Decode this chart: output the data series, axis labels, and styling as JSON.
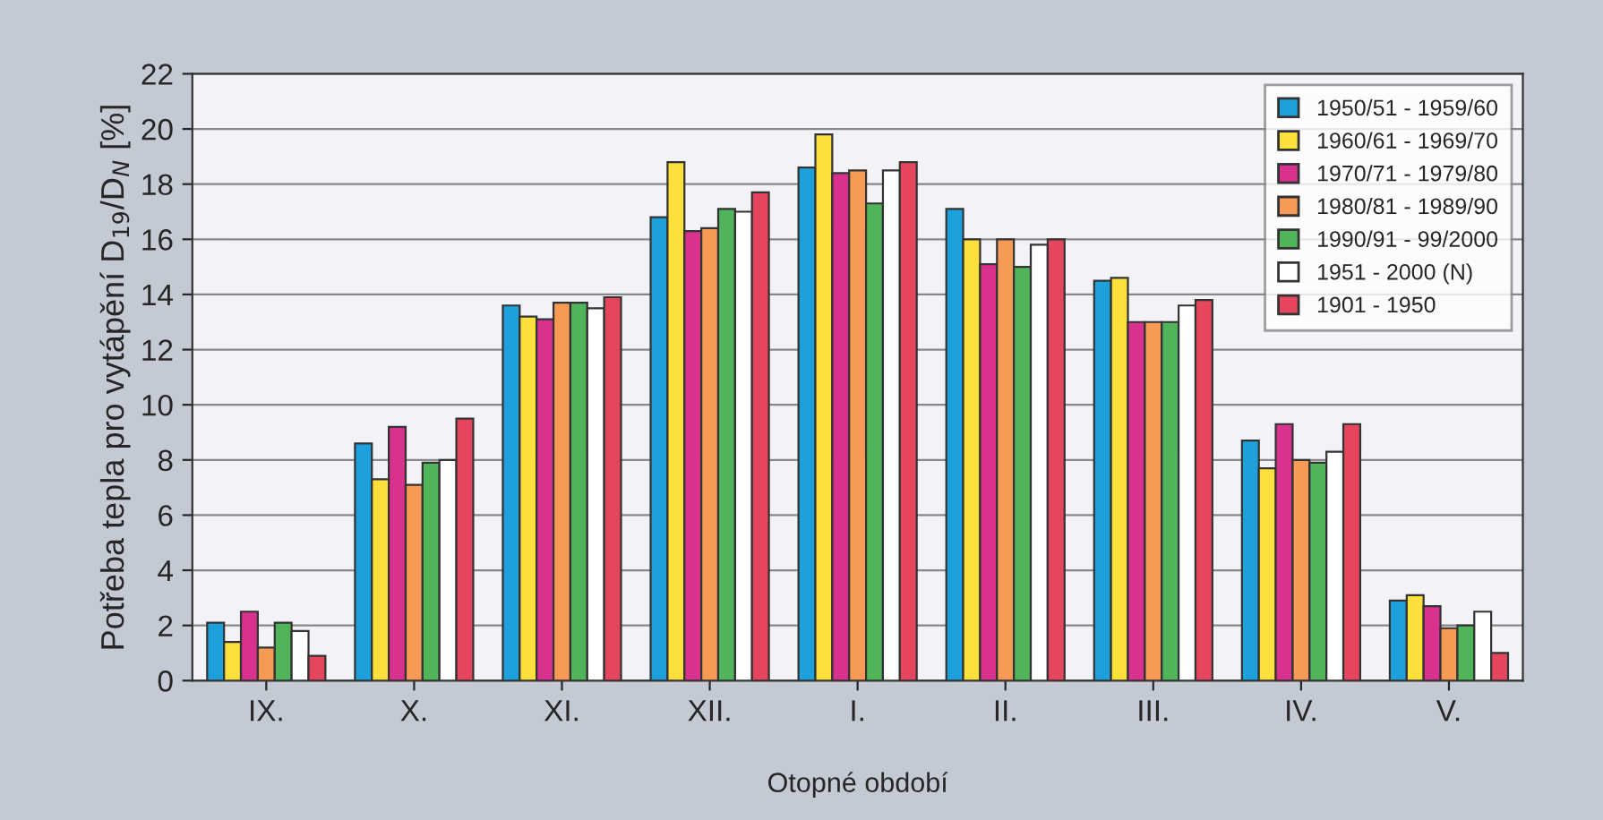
{
  "chart_data": {
    "type": "bar",
    "xlabel": "Otopné období",
    "ylabel": "Potřeba tepla pro vytápění D$_{19}$/D$_{N}$ [%]",
    "categories": [
      "IX.",
      "X.",
      "XI.",
      "XII.",
      "I.",
      "II.",
      "III.",
      "IV.",
      "V."
    ],
    "series": [
      {
        "name": "1950/51 - 1959/60",
        "color": "#1ea0dc",
        "values": [
          2.1,
          8.6,
          13.6,
          16.8,
          18.6,
          17.1,
          14.5,
          8.7,
          2.9
        ]
      },
      {
        "name": "1960/61 - 1969/70",
        "color": "#fde03c",
        "values": [
          1.4,
          7.3,
          13.2,
          18.8,
          19.8,
          16.0,
          14.6,
          7.7,
          3.1
        ]
      },
      {
        "name": "1970/71 - 1979/80",
        "color": "#d8328e",
        "values": [
          2.5,
          9.2,
          13.1,
          16.3,
          18.4,
          15.1,
          13.0,
          9.3,
          2.7
        ]
      },
      {
        "name": "1980/81 - 1989/90",
        "color": "#f79a55",
        "values": [
          1.2,
          7.1,
          13.7,
          16.4,
          18.5,
          16.0,
          13.0,
          8.0,
          1.9
        ]
      },
      {
        "name": "1990/91 - 99/2000",
        "color": "#4fb45a",
        "values": [
          2.1,
          7.9,
          13.7,
          17.1,
          17.3,
          15.0,
          13.0,
          7.9,
          2.0
        ]
      },
      {
        "name": "1951 - 2000 (N)",
        "color": "#ffffff",
        "values": [
          1.8,
          8.0,
          13.5,
          17.0,
          18.5,
          15.8,
          13.6,
          8.3,
          2.5
        ]
      },
      {
        "name": "1901 - 1950",
        "color": "#e5465e",
        "values": [
          0.9,
          9.5,
          13.9,
          17.7,
          18.8,
          16.0,
          13.8,
          9.3,
          1.0
        ]
      }
    ],
    "ylim": [
      0,
      22
    ],
    "yticks": [
      0,
      2,
      4,
      6,
      8,
      10,
      12,
      14,
      16,
      18,
      20,
      22
    ],
    "grid": "y",
    "legend": "top right"
  }
}
